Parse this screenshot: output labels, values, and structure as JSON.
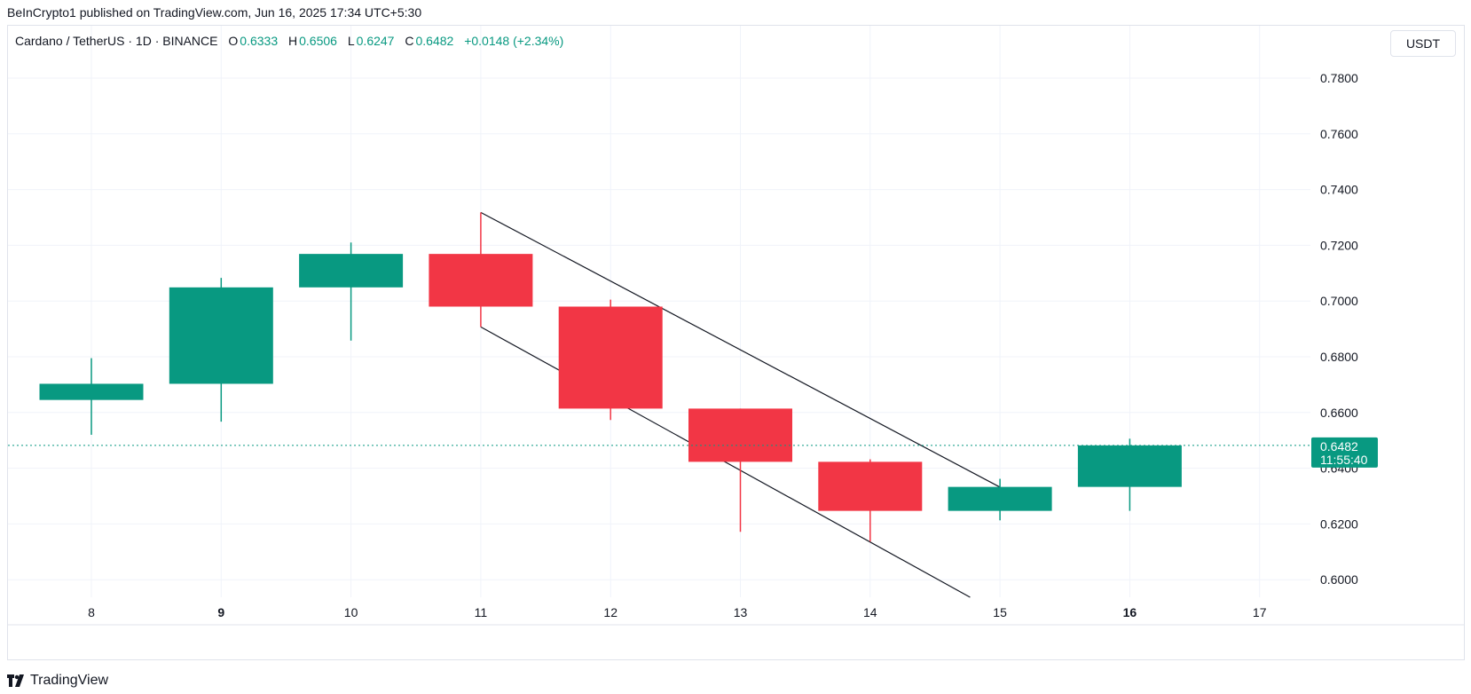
{
  "header": {
    "publisher": "BeInCrypto1 published on TradingView.com, Jun 16, 2025 17:34 UTC+5:30"
  },
  "legend": {
    "symbol": "Cardano / TetherUS · 1D · BINANCE",
    "open_label": "O",
    "open": "0.6333",
    "high_label": "H",
    "high": "0.6506",
    "low_label": "L",
    "low": "0.6247",
    "close_label": "C",
    "close": "0.6482",
    "change": "+0.0148 (+2.34%)"
  },
  "currency": "USDT",
  "last_price": {
    "value": "0.6482",
    "countdown": "11:55:40"
  },
  "footer": {
    "brand": "TradingView"
  },
  "colors": {
    "up": "#089981",
    "down": "#F23645",
    "grid": "#f0f3fa",
    "text": "#131722"
  },
  "chart_data": {
    "type": "candlestick",
    "ylim": [
      0.59,
      0.79
    ],
    "y_ticks": [
      "0.7800",
      "0.7600",
      "0.7400",
      "0.7200",
      "0.7000",
      "0.6800",
      "0.6600",
      "0.6400",
      "0.6200",
      "0.6000"
    ],
    "x_ticks": [
      {
        "label": "8",
        "bold": false
      },
      {
        "label": "9",
        "bold": true
      },
      {
        "label": "10",
        "bold": false
      },
      {
        "label": "11",
        "bold": false
      },
      {
        "label": "12",
        "bold": false
      },
      {
        "label": "13",
        "bold": false
      },
      {
        "label": "14",
        "bold": false
      },
      {
        "label": "15",
        "bold": false
      },
      {
        "label": "16",
        "bold": true
      },
      {
        "label": "17",
        "bold": false
      }
    ],
    "candles": [
      {
        "day": "8",
        "open": 0.6645,
        "high": 0.6795,
        "low": 0.652,
        "close": 0.6703
      },
      {
        "day": "9",
        "open": 0.6703,
        "high": 0.7083,
        "low": 0.6567,
        "close": 0.7049
      },
      {
        "day": "10",
        "open": 0.7049,
        "high": 0.721,
        "low": 0.6858,
        "close": 0.7169
      },
      {
        "day": "11",
        "open": 0.7169,
        "high": 0.7318,
        "low": 0.6907,
        "close": 0.698
      },
      {
        "day": "12",
        "open": 0.698,
        "high": 0.7005,
        "low": 0.6573,
        "close": 0.6614
      },
      {
        "day": "13",
        "open": 0.6614,
        "high": 0.6614,
        "low": 0.6172,
        "close": 0.6423
      },
      {
        "day": "14",
        "open": 0.6423,
        "high": 0.6432,
        "low": 0.6137,
        "close": 0.6247
      },
      {
        "day": "15",
        "open": 0.6247,
        "high": 0.6362,
        "low": 0.6213,
        "close": 0.6333
      },
      {
        "day": "16",
        "open": 0.6333,
        "high": 0.6506,
        "low": 0.6247,
        "close": 0.6482
      }
    ],
    "trendlines": [
      {
        "from": {
          "day": "11",
          "price": 0.7318
        },
        "to": {
          "day": "15",
          "price": 0.6332
        }
      },
      {
        "from": {
          "day": "11",
          "price": 0.6907
        },
        "to": {
          "day": "14.77",
          "price": 0.5937
        }
      }
    ],
    "last_price_line": 0.6482
  }
}
